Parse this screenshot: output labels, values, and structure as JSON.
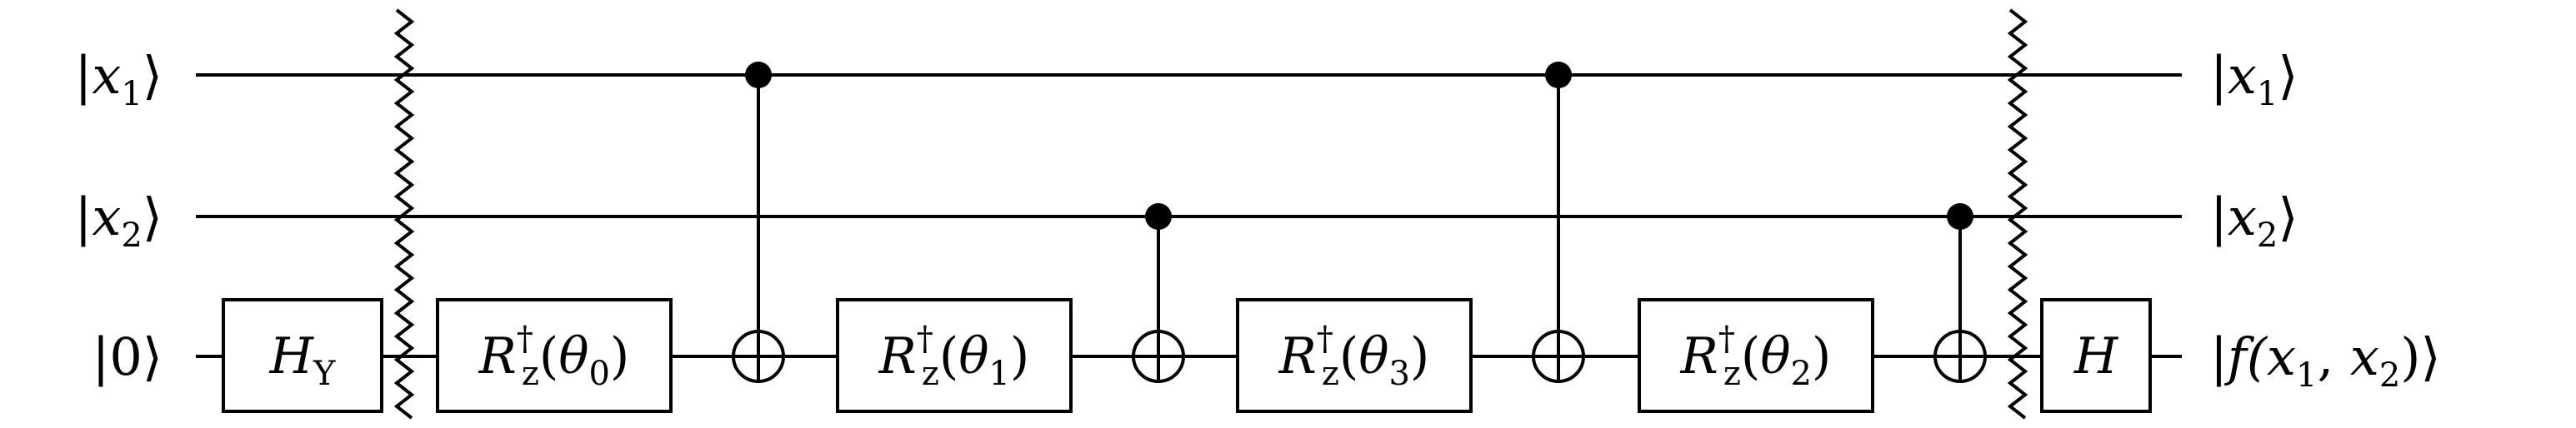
{
  "inputs": {
    "x1": {
      "ket_open": "|",
      "var": "x",
      "sub": "1",
      "ket_close": "⟩"
    },
    "x2": {
      "ket_open": "|",
      "var": "x",
      "sub": "2",
      "ket_close": "⟩"
    },
    "q0": {
      "text": "|0⟩"
    }
  },
  "outputs": {
    "x1": {
      "ket_open": "|",
      "var": "x",
      "sub": "1",
      "ket_close": "⟩"
    },
    "x2": {
      "ket_open": "|",
      "var": "x",
      "sub": "2",
      "ket_close": "⟩"
    },
    "f": {
      "pre": "|f(",
      "v1": "x",
      "s1": "1",
      "mid": ", ",
      "v2": "x",
      "s2": "2",
      "post": ")⟩"
    }
  },
  "gates": {
    "hy": {
      "main": "H",
      "sub": "Y"
    },
    "rz0": {
      "main": "R",
      "sup": "†",
      "sub": "z",
      "arg_open": "(",
      "arg": "θ",
      "arg_sub": "0",
      "arg_close": ")"
    },
    "rz1": {
      "main": "R",
      "sup": "†",
      "sub": "z",
      "arg_open": "(",
      "arg": "θ",
      "arg_sub": "1",
      "arg_close": ")"
    },
    "rz3": {
      "main": "R",
      "sup": "†",
      "sub": "z",
      "arg_open": "(",
      "arg": "θ",
      "arg_sub": "3",
      "arg_close": ")"
    },
    "rz2": {
      "main": "R",
      "sup": "†",
      "sub": "z",
      "arg_open": "(",
      "arg": "θ",
      "arg_sub": "2",
      "arg_close": ")"
    },
    "h": {
      "main": "H"
    }
  },
  "sequence": [
    "HY",
    "barrier",
    "Rz†(θ0)",
    "CNOT x1→q0",
    "Rz†(θ1)",
    "CNOT x2→q0",
    "Rz†(θ3)",
    "CNOT x1→q0",
    "Rz†(θ2)",
    "CNOT x2→q0",
    "barrier",
    "H"
  ]
}
